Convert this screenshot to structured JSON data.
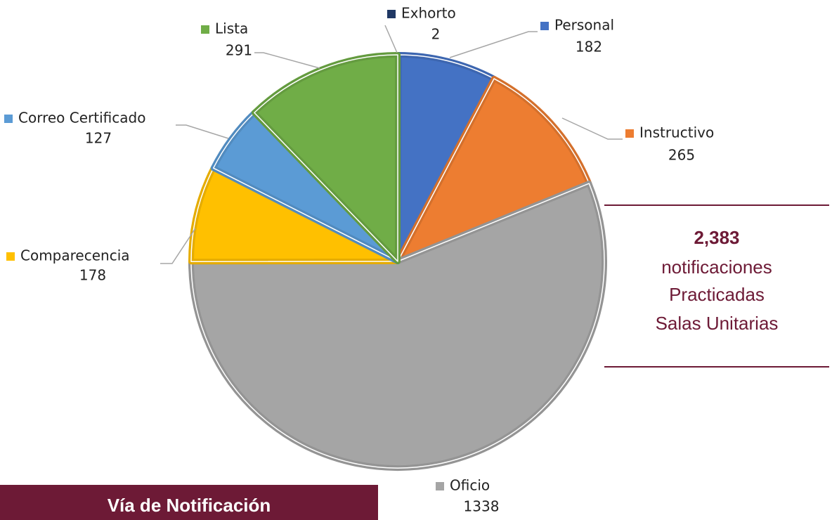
{
  "chart_data": {
    "type": "pie",
    "title": "Vía de Notificación",
    "categories": [
      "Exhorto",
      "Personal",
      "Instructivo",
      "Oficio",
      "Comparecencia",
      "Correo Certificado",
      "Lista"
    ],
    "values": [
      2,
      182,
      265,
      1338,
      178,
      127,
      291
    ],
    "colors": [
      "#203864",
      "#4472c4",
      "#ed7d31",
      "#a5a5a5",
      "#ffc000",
      "#5b9bd5",
      "#70ad47"
    ],
    "annotation": [
      "2,383",
      "notificaciones",
      "Practicadas",
      "Salas Unitarias"
    ]
  }
}
